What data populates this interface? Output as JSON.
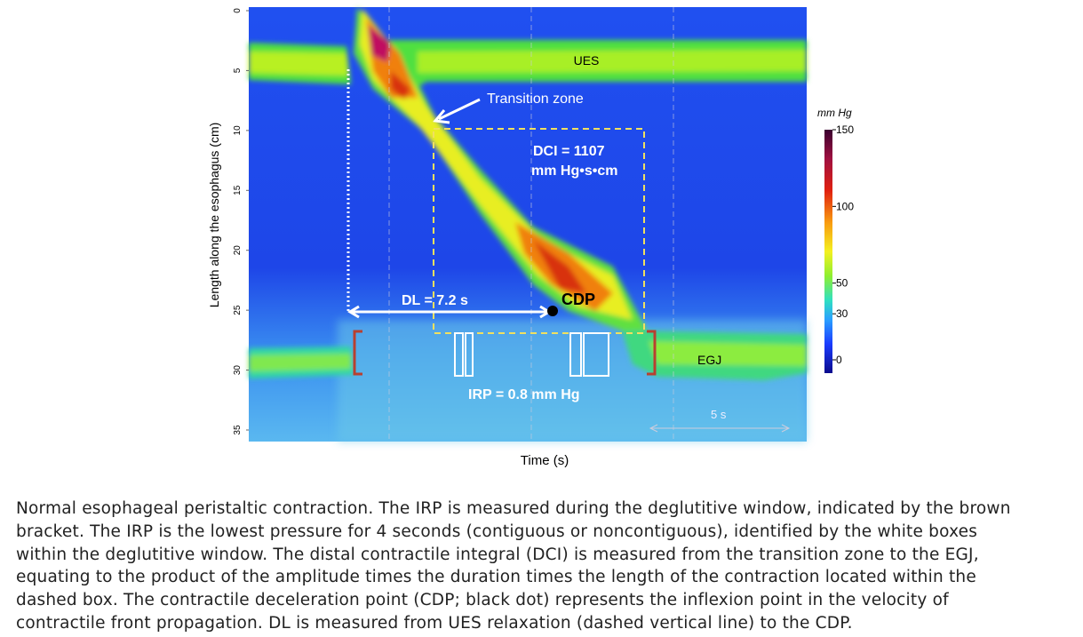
{
  "figure": {
    "y_axis_label": "Length along the esophagus (cm)",
    "y_ticks": [
      0,
      5,
      10,
      15,
      20,
      25,
      30,
      35
    ],
    "y_range": [
      0,
      35
    ],
    "x_axis_label": "Time (s)",
    "colorbar_unit": "mm Hg",
    "colorbar_ticks": [
      150,
      100,
      50,
      30,
      0
    ],
    "colorbar_range": [
      0,
      150
    ],
    "annotations": {
      "ues": "UES",
      "transition_zone": "Transition zone",
      "dci_line1": "DCI = 1107",
      "dci_line2": "mm Hg•s•cm",
      "cdp": "CDP",
      "dl": "DL = 7.2 s",
      "egj": "EGJ",
      "irp": "IRP = 0.8 mm Hg",
      "scale": "5 s"
    }
  },
  "caption": {
    "lines": [
      "Normal esophageal peristaltic contraction. The IRP is measured during the deglutitive window, indicated by the brown",
      "bracket. The IRP is the lowest pressure for 4 seconds (contiguous or noncontiguous), identified by the white boxes",
      "within the deglutitive window. The distal contractile integral (DCI) is measured from the transition zone to the EGJ,",
      "equating to the product of the amplitude times the duration times the length of the contraction located within the",
      "dashed box. The contractile deceleration point (CDP; black dot) represents the inflexion point in the velocity of",
      "contractile front propagation. DL is measured from UES relaxation (dashed vertical line) to the CDP."
    ]
  }
}
